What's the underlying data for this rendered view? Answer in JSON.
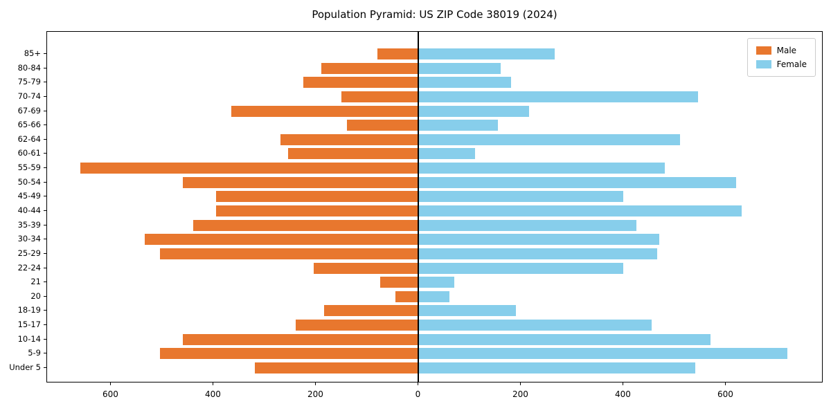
{
  "chart_data": {
    "type": "bar",
    "variant": "population-pyramid",
    "title": "Population Pyramid: US ZIP Code 38019 (2024)",
    "categories_top_to_bottom": [
      "85+",
      "80-84",
      "75-79",
      "70-74",
      "67-69",
      "65-66",
      "62-64",
      "60-61",
      "55-59",
      "50-54",
      "45-49",
      "40-44",
      "35-39",
      "30-34",
      "25-29",
      "22-24",
      "21",
      "20",
      "18-19",
      "15-17",
      "10-14",
      "5-9",
      "Under 5"
    ],
    "series": [
      {
        "name": "Male",
        "side": "left",
        "color": "#E8772E",
        "values": [
          80,
          190,
          225,
          150,
          365,
          140,
          270,
          255,
          660,
          460,
          395,
          395,
          440,
          535,
          505,
          205,
          75,
          45,
          185,
          240,
          460,
          505,
          320
        ]
      },
      {
        "name": "Female",
        "side": "right",
        "color": "#87CEEB",
        "values": [
          265,
          160,
          180,
          545,
          215,
          155,
          510,
          110,
          480,
          620,
          400,
          630,
          425,
          470,
          465,
          400,
          70,
          60,
          190,
          455,
          570,
          720,
          540
        ]
      }
    ],
    "xlim": [
      -725,
      790
    ],
    "xtick_values": [
      -600,
      -400,
      -200,
      0,
      200,
      400,
      600
    ],
    "xtick_labels": [
      "600",
      "400",
      "200",
      "0",
      "200",
      "400",
      "600"
    ],
    "grid": false,
    "legend_position": "upper-right",
    "axis_color": "#000000"
  }
}
